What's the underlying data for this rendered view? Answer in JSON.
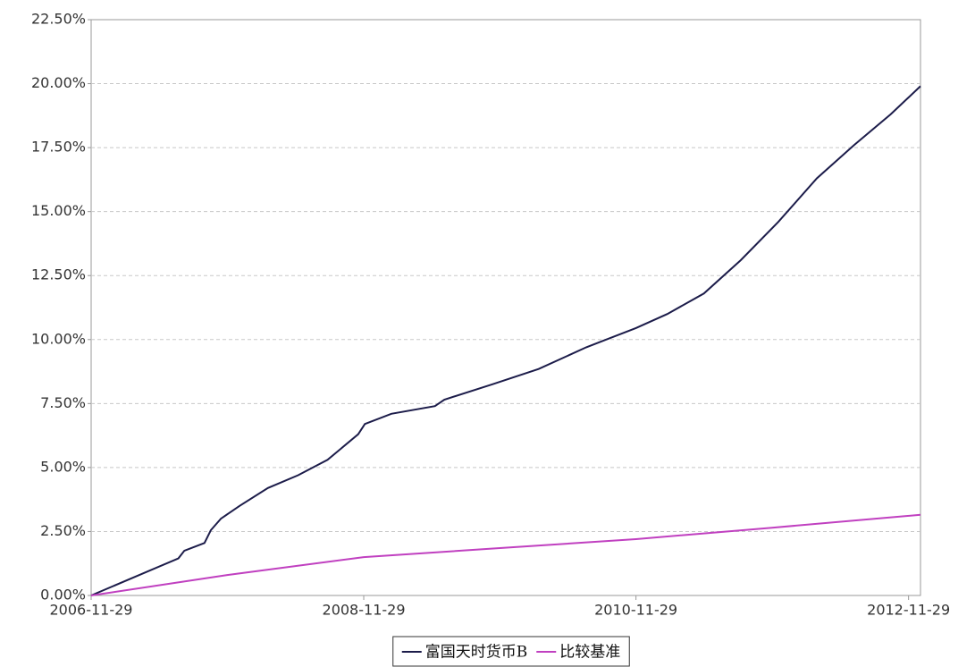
{
  "chart_data": {
    "type": "line",
    "xlim": [
      "2006-11-29",
      "2012-12-31"
    ],
    "xticks": [
      "2006-11-29",
      "2008-11-29",
      "2010-11-29",
      "2012-11-29"
    ],
    "ylim": [
      0,
      22.5
    ],
    "yticks": [
      {
        "value": 0,
        "label": "0.00%"
      },
      {
        "value": 2.5,
        "label": "2.50%"
      },
      {
        "value": 5,
        "label": "5.00%"
      },
      {
        "value": 7.5,
        "label": "7.50%"
      },
      {
        "value": 10,
        "label": "10.00%"
      },
      {
        "value": 12.5,
        "label": "12.50%"
      },
      {
        "value": 15,
        "label": "15.00%"
      },
      {
        "value": 17.5,
        "label": "17.50%"
      },
      {
        "value": 20,
        "label": "20.00%"
      },
      {
        "value": 22.5,
        "label": "22.50%"
      }
    ],
    "grid": true,
    "legend": "bottom",
    "series": [
      {
        "name": "富国天时货币B",
        "color": "#1c1c4a",
        "x": [
          "2006-11-29",
          "2007-07-21",
          "2007-08-06",
          "2007-09-29",
          "2007-10-16",
          "2007-11-12",
          "2008-01-01",
          "2008-03-17",
          "2008-06-06",
          "2008-08-24",
          "2008-11-14",
          "2008-12-02",
          "2009-02-11",
          "2009-06-08",
          "2009-07-03",
          "2009-11-08",
          "2010-03-13",
          "2010-07-19",
          "2010-11-29",
          "2011-02-21",
          "2011-05-30",
          "2011-09-06",
          "2011-12-16",
          "2012-03-28",
          "2012-07-06",
          "2012-10-12",
          "2012-12-31"
        ],
        "values": [
          0,
          1.45,
          1.75,
          2.05,
          2.55,
          3.0,
          3.5,
          4.2,
          4.7,
          5.3,
          6.3,
          6.7,
          7.1,
          7.4,
          7.65,
          8.25,
          8.85,
          9.7,
          10.45,
          11.0,
          11.8,
          13.1,
          14.6,
          16.3,
          17.6,
          18.8,
          19.9
        ]
      },
      {
        "name": "比较基准",
        "color": "#c040c0",
        "x": [
          "2006-11-29",
          "2007-11-29",
          "2008-11-29",
          "2009-11-29",
          "2010-11-29",
          "2011-11-29",
          "2012-12-31"
        ],
        "values": [
          0,
          0.8,
          1.5,
          1.85,
          2.2,
          2.65,
          3.15
        ]
      }
    ]
  }
}
